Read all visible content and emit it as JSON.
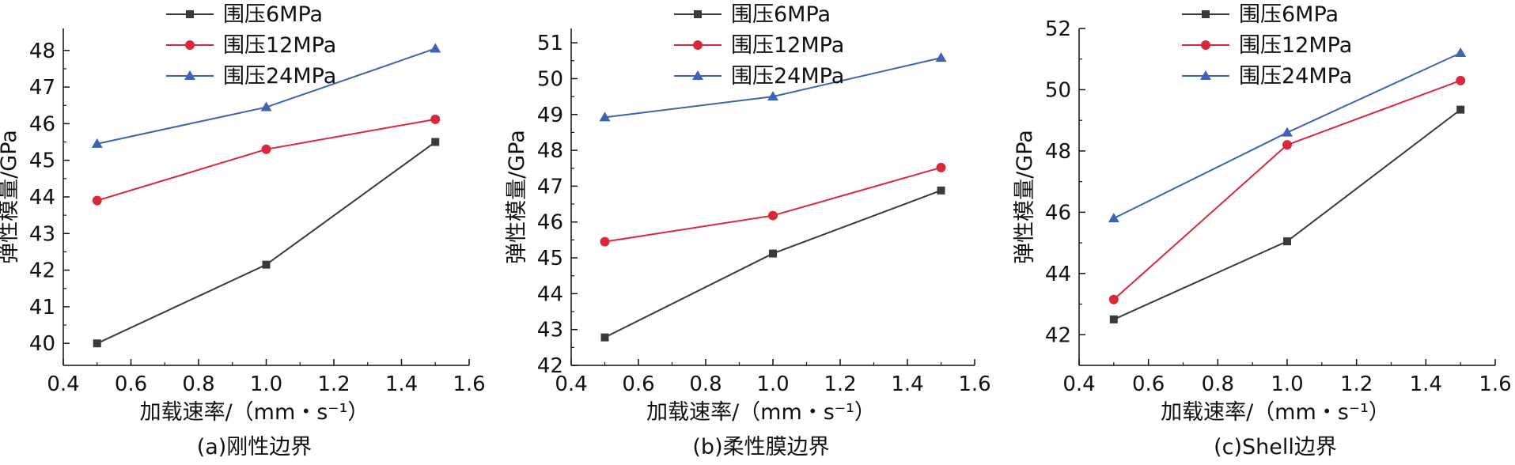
{
  "colors": {
    "6MPa": "#3a3a3a",
    "12MPa": "#d9283a",
    "24MPa": "#3d63b4",
    "axis": "#111111"
  },
  "chart_data": [
    {
      "type": "line",
      "caption": "(a)刚性边界",
      "xlabel": "加载速率/（mm・s⁻¹）",
      "ylabel": "弹性模量/GPa",
      "xlim": [
        0.4,
        1.6
      ],
      "ylim": [
        39.4,
        48.6
      ],
      "xticks": [
        "0.4",
        "0.6",
        "0.8",
        "1.0",
        "1.2",
        "1.4",
        "1.6"
      ],
      "yticks": [
        "40",
        "41",
        "42",
        "43",
        "44",
        "45",
        "46",
        "47",
        "48"
      ],
      "x": [
        0.5,
        1.0,
        1.5
      ],
      "legend_position": "top-left",
      "series": [
        {
          "name": "围压6MPa",
          "marker": "square",
          "color_key": "6MPa",
          "values": [
            40.0,
            42.15,
            45.5
          ]
        },
        {
          "name": "围压12MPa",
          "marker": "circle",
          "color_key": "12MPa",
          "values": [
            43.9,
            45.3,
            46.12
          ]
        },
        {
          "name": "围压24MPa",
          "marker": "triangle",
          "color_key": "24MPa",
          "values": [
            45.45,
            46.45,
            48.05
          ]
        }
      ]
    },
    {
      "type": "line",
      "caption": "(b)柔性膜边界",
      "xlabel": "加载速率/（mm・s⁻¹）",
      "ylabel": "弹性模量/GPa",
      "xlim": [
        0.4,
        1.6
      ],
      "ylim": [
        42.0,
        51.4
      ],
      "xticks": [
        "0.4",
        "0.6",
        "0.8",
        "1.0",
        "1.2",
        "1.4",
        "1.6"
      ],
      "yticks": [
        "42",
        "43",
        "44",
        "45",
        "46",
        "47",
        "48",
        "49",
        "50",
        "51"
      ],
      "x": [
        0.5,
        1.0,
        1.5
      ],
      "legend_position": "top-left",
      "series": [
        {
          "name": "围压6MPa",
          "marker": "square",
          "color_key": "6MPa",
          "values": [
            42.78,
            45.12,
            46.88
          ]
        },
        {
          "name": "围压12MPa",
          "marker": "circle",
          "color_key": "12MPa",
          "values": [
            45.45,
            46.18,
            47.52
          ]
        },
        {
          "name": "围压24MPa",
          "marker": "triangle",
          "color_key": "24MPa",
          "values": [
            48.92,
            49.5,
            50.58
          ]
        }
      ]
    },
    {
      "type": "line",
      "caption": "(c)Shell边界",
      "xlabel": "加载速率/（mm・s⁻¹）",
      "ylabel": "弹性模量/GPa",
      "xlim": [
        0.4,
        1.6
      ],
      "ylim": [
        41.0,
        52.0
      ],
      "xticks": [
        "0.4",
        "0.6",
        "0.8",
        "1.0",
        "1.2",
        "1.4",
        "1.6"
      ],
      "yticks": [
        "42",
        "44",
        "46",
        "48",
        "50",
        "52"
      ],
      "x": [
        0.5,
        1.0,
        1.5
      ],
      "legend_position": "top-left",
      "series": [
        {
          "name": "围压6MPa",
          "marker": "square",
          "color_key": "6MPa",
          "values": [
            42.5,
            45.05,
            49.35
          ]
        },
        {
          "name": "围压12MPa",
          "marker": "circle",
          "color_key": "12MPa",
          "values": [
            43.15,
            48.2,
            50.3
          ]
        },
        {
          "name": "围压24MPa",
          "marker": "triangle",
          "color_key": "24MPa",
          "values": [
            45.8,
            48.6,
            51.2
          ]
        }
      ]
    }
  ]
}
